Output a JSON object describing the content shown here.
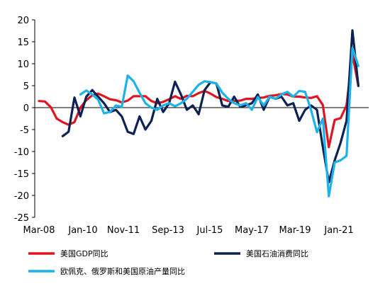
{
  "chart_data": {
    "type": "line",
    "x_tick_labels": [
      "Mar-08",
      "Jan-10",
      "Nov-11",
      "Sep-13",
      "Jul-15",
      "May-17",
      "Mar-19",
      "Jan-21"
    ],
    "y_ticks": [
      20,
      15,
      10,
      5,
      0,
      -5,
      -10,
      -15,
      -20,
      -25
    ],
    "ylim": [
      -25,
      20
    ],
    "x_unit": "quarter",
    "x_range_quarters": [
      0,
      54
    ],
    "grid": false,
    "legend_position": "bottom",
    "series": [
      {
        "name": "美国GDP同比",
        "color": "#e0141e",
        "points": [
          [
            0,
            1.5
          ],
          [
            1,
            1.4
          ],
          [
            2,
            0.1
          ],
          [
            3,
            -2.5
          ],
          [
            4,
            -3.3
          ],
          [
            5,
            -3.9
          ],
          [
            6,
            -3.3
          ],
          [
            7,
            0.0
          ],
          [
            8,
            1.7
          ],
          [
            9,
            2.8
          ],
          [
            10,
            3.2
          ],
          [
            11,
            2.6
          ],
          [
            12,
            1.9
          ],
          [
            13,
            1.7
          ],
          [
            14,
            1.2
          ],
          [
            15,
            1.6
          ],
          [
            16,
            2.6
          ],
          [
            17,
            2.6
          ],
          [
            18,
            2.6
          ],
          [
            19,
            1.5
          ],
          [
            20,
            1.0
          ],
          [
            21,
            1.3
          ],
          [
            22,
            1.9
          ],
          [
            23,
            2.6
          ],
          [
            24,
            2.0
          ],
          [
            25,
            2.7
          ],
          [
            26,
            2.6
          ],
          [
            27,
            3.3
          ],
          [
            28,
            3.8
          ],
          [
            29,
            3.2
          ],
          [
            30,
            2.4
          ],
          [
            31,
            2.0
          ],
          [
            32,
            1.5
          ],
          [
            33,
            1.5
          ],
          [
            34,
            1.6
          ],
          [
            35,
            2.0
          ],
          [
            36,
            2.0
          ],
          [
            37,
            2.2
          ],
          [
            38,
            2.3
          ],
          [
            39,
            2.7
          ],
          [
            40,
            2.8
          ],
          [
            41,
            3.1
          ],
          [
            42,
            3.0
          ],
          [
            43,
            2.5
          ],
          [
            44,
            2.5
          ],
          [
            45,
            2.3
          ],
          [
            46,
            2.2
          ],
          [
            47,
            2.6
          ],
          [
            48,
            0.6
          ],
          [
            49,
            -9.0
          ],
          [
            50,
            -2.8
          ],
          [
            51,
            -2.4
          ],
          [
            52,
            0.5
          ],
          [
            53,
            12.2
          ],
          [
            54,
            4.9
          ]
        ]
      },
      {
        "name": "美国石油消费同比",
        "color": "#0d2253",
        "points": [
          [
            4,
            -6.5
          ],
          [
            5,
            -5.5
          ],
          [
            6,
            2.3
          ],
          [
            7,
            -2.0
          ],
          [
            8,
            2.5
          ],
          [
            9,
            4.0
          ],
          [
            10,
            2.5
          ],
          [
            11,
            1.0
          ],
          [
            12,
            -1.0
          ],
          [
            13,
            -0.5
          ],
          [
            14,
            -2.0
          ],
          [
            15,
            -5.5
          ],
          [
            16,
            -6.0
          ],
          [
            17,
            -2.0
          ],
          [
            18,
            -5.0
          ],
          [
            19,
            -3.0
          ],
          [
            20,
            2.0
          ],
          [
            21,
            -1.0
          ],
          [
            22,
            1.0
          ],
          [
            23,
            5.9
          ],
          [
            24,
            3.0
          ],
          [
            25,
            -0.5
          ],
          [
            26,
            0.5
          ],
          [
            27,
            -1.5
          ],
          [
            28,
            4.0
          ],
          [
            29,
            5.8
          ],
          [
            30,
            5.5
          ],
          [
            31,
            0.5
          ],
          [
            32,
            0.2
          ],
          [
            33,
            2.5
          ],
          [
            34,
            0.2
          ],
          [
            35,
            0.5
          ],
          [
            36,
            1.0
          ],
          [
            37,
            3.0
          ],
          [
            38,
            -0.5
          ],
          [
            39,
            2.5
          ],
          [
            40,
            2.0
          ],
          [
            41,
            2.5
          ],
          [
            42,
            0.5
          ],
          [
            43,
            1.0
          ],
          [
            44,
            -3.0
          ],
          [
            45,
            -0.5
          ],
          [
            46,
            0.5
          ],
          [
            47,
            -0.5
          ],
          [
            48,
            -9.0
          ],
          [
            49,
            -17.0
          ],
          [
            50,
            -12.0
          ],
          [
            51,
            -8.0
          ],
          [
            52,
            -3.0
          ],
          [
            53,
            17.6
          ],
          [
            54,
            5.0
          ]
        ]
      },
      {
        "name": "欧佩克、俄罗斯和美国原油产量同比",
        "color": "#1cb3ea",
        "points": [
          [
            7,
            3.0
          ],
          [
            8,
            3.9
          ],
          [
            9,
            3.0
          ],
          [
            10,
            1.8
          ],
          [
            11,
            -1.3
          ],
          [
            12,
            -1.0
          ],
          [
            13,
            0.5
          ],
          [
            14,
            0.2
          ],
          [
            15,
            7.3
          ],
          [
            16,
            6.0
          ],
          [
            17,
            3.4
          ],
          [
            18,
            1.0
          ],
          [
            19,
            0.0
          ],
          [
            20,
            -0.5
          ],
          [
            21,
            0.5
          ],
          [
            22,
            1.0
          ],
          [
            23,
            0.3
          ],
          [
            24,
            1.0
          ],
          [
            25,
            2.0
          ],
          [
            26,
            3.6
          ],
          [
            27,
            5.2
          ],
          [
            28,
            6.0
          ],
          [
            29,
            5.8
          ],
          [
            30,
            5.5
          ],
          [
            31,
            3.4
          ],
          [
            32,
            2.0
          ],
          [
            33,
            1.0
          ],
          [
            34,
            0.5
          ],
          [
            35,
            1.0
          ],
          [
            36,
            -0.5
          ],
          [
            37,
            2.4
          ],
          [
            38,
            0.5
          ],
          [
            39,
            2.5
          ],
          [
            40,
            2.0
          ],
          [
            41,
            3.0
          ],
          [
            42,
            3.6
          ],
          [
            43,
            2.5
          ],
          [
            44,
            3.8
          ],
          [
            45,
            3.6
          ],
          [
            46,
            -0.5
          ],
          [
            47,
            -5.6
          ],
          [
            48,
            -2.5
          ],
          [
            49,
            -20.2
          ],
          [
            50,
            -12.5
          ],
          [
            51,
            -12.0
          ],
          [
            52,
            -11.0
          ],
          [
            53,
            13.6
          ],
          [
            54,
            9.5
          ]
        ]
      }
    ]
  }
}
